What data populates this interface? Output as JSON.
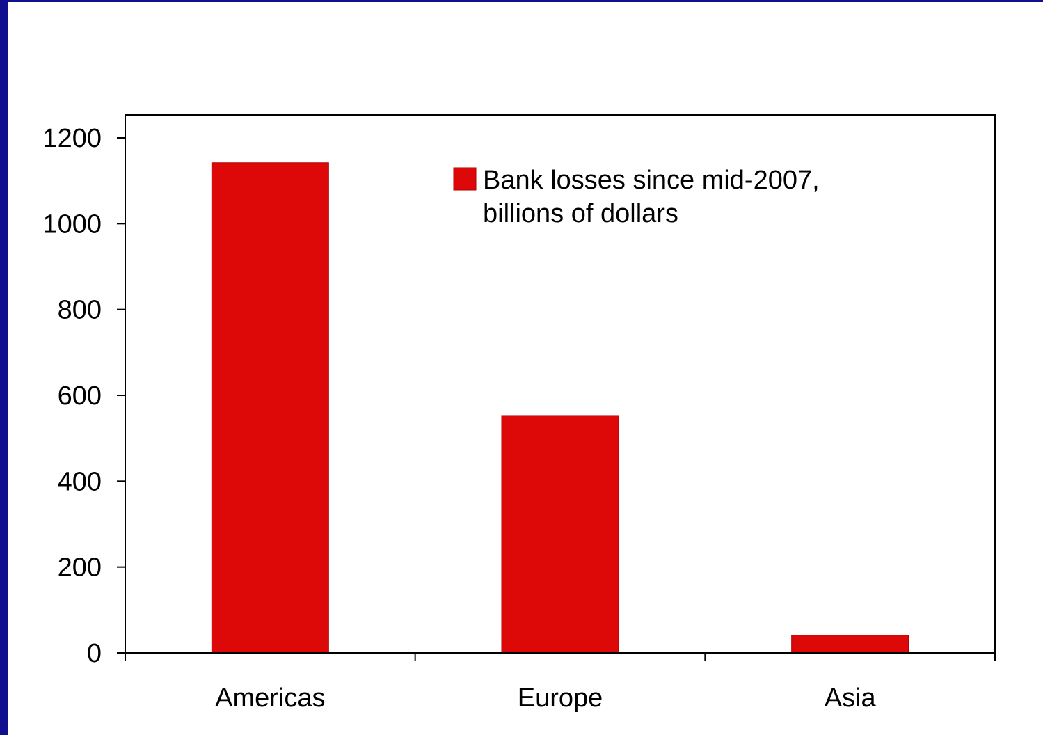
{
  "colors": {
    "frame": "#10108e",
    "bar": "#dd0808",
    "bar_edge": "#b00000",
    "axis": "#000000"
  },
  "chart_data": {
    "type": "bar",
    "categories": [
      "Americas",
      "Europe",
      "Asia"
    ],
    "series": [
      {
        "name": "Bank losses since mid-2007, billions of dollars",
        "name_lines": [
          "Bank losses since mid-2007,",
          "billions of dollars"
        ],
        "values": [
          1142,
          553,
          41
        ]
      }
    ],
    "title": "",
    "xlabel": "",
    "ylabel": "",
    "ylim": [
      0,
      1200
    ],
    "yticks": [
      0,
      200,
      400,
      600,
      800,
      1000,
      1200
    ],
    "grid": false,
    "legend_position": "top-right"
  }
}
